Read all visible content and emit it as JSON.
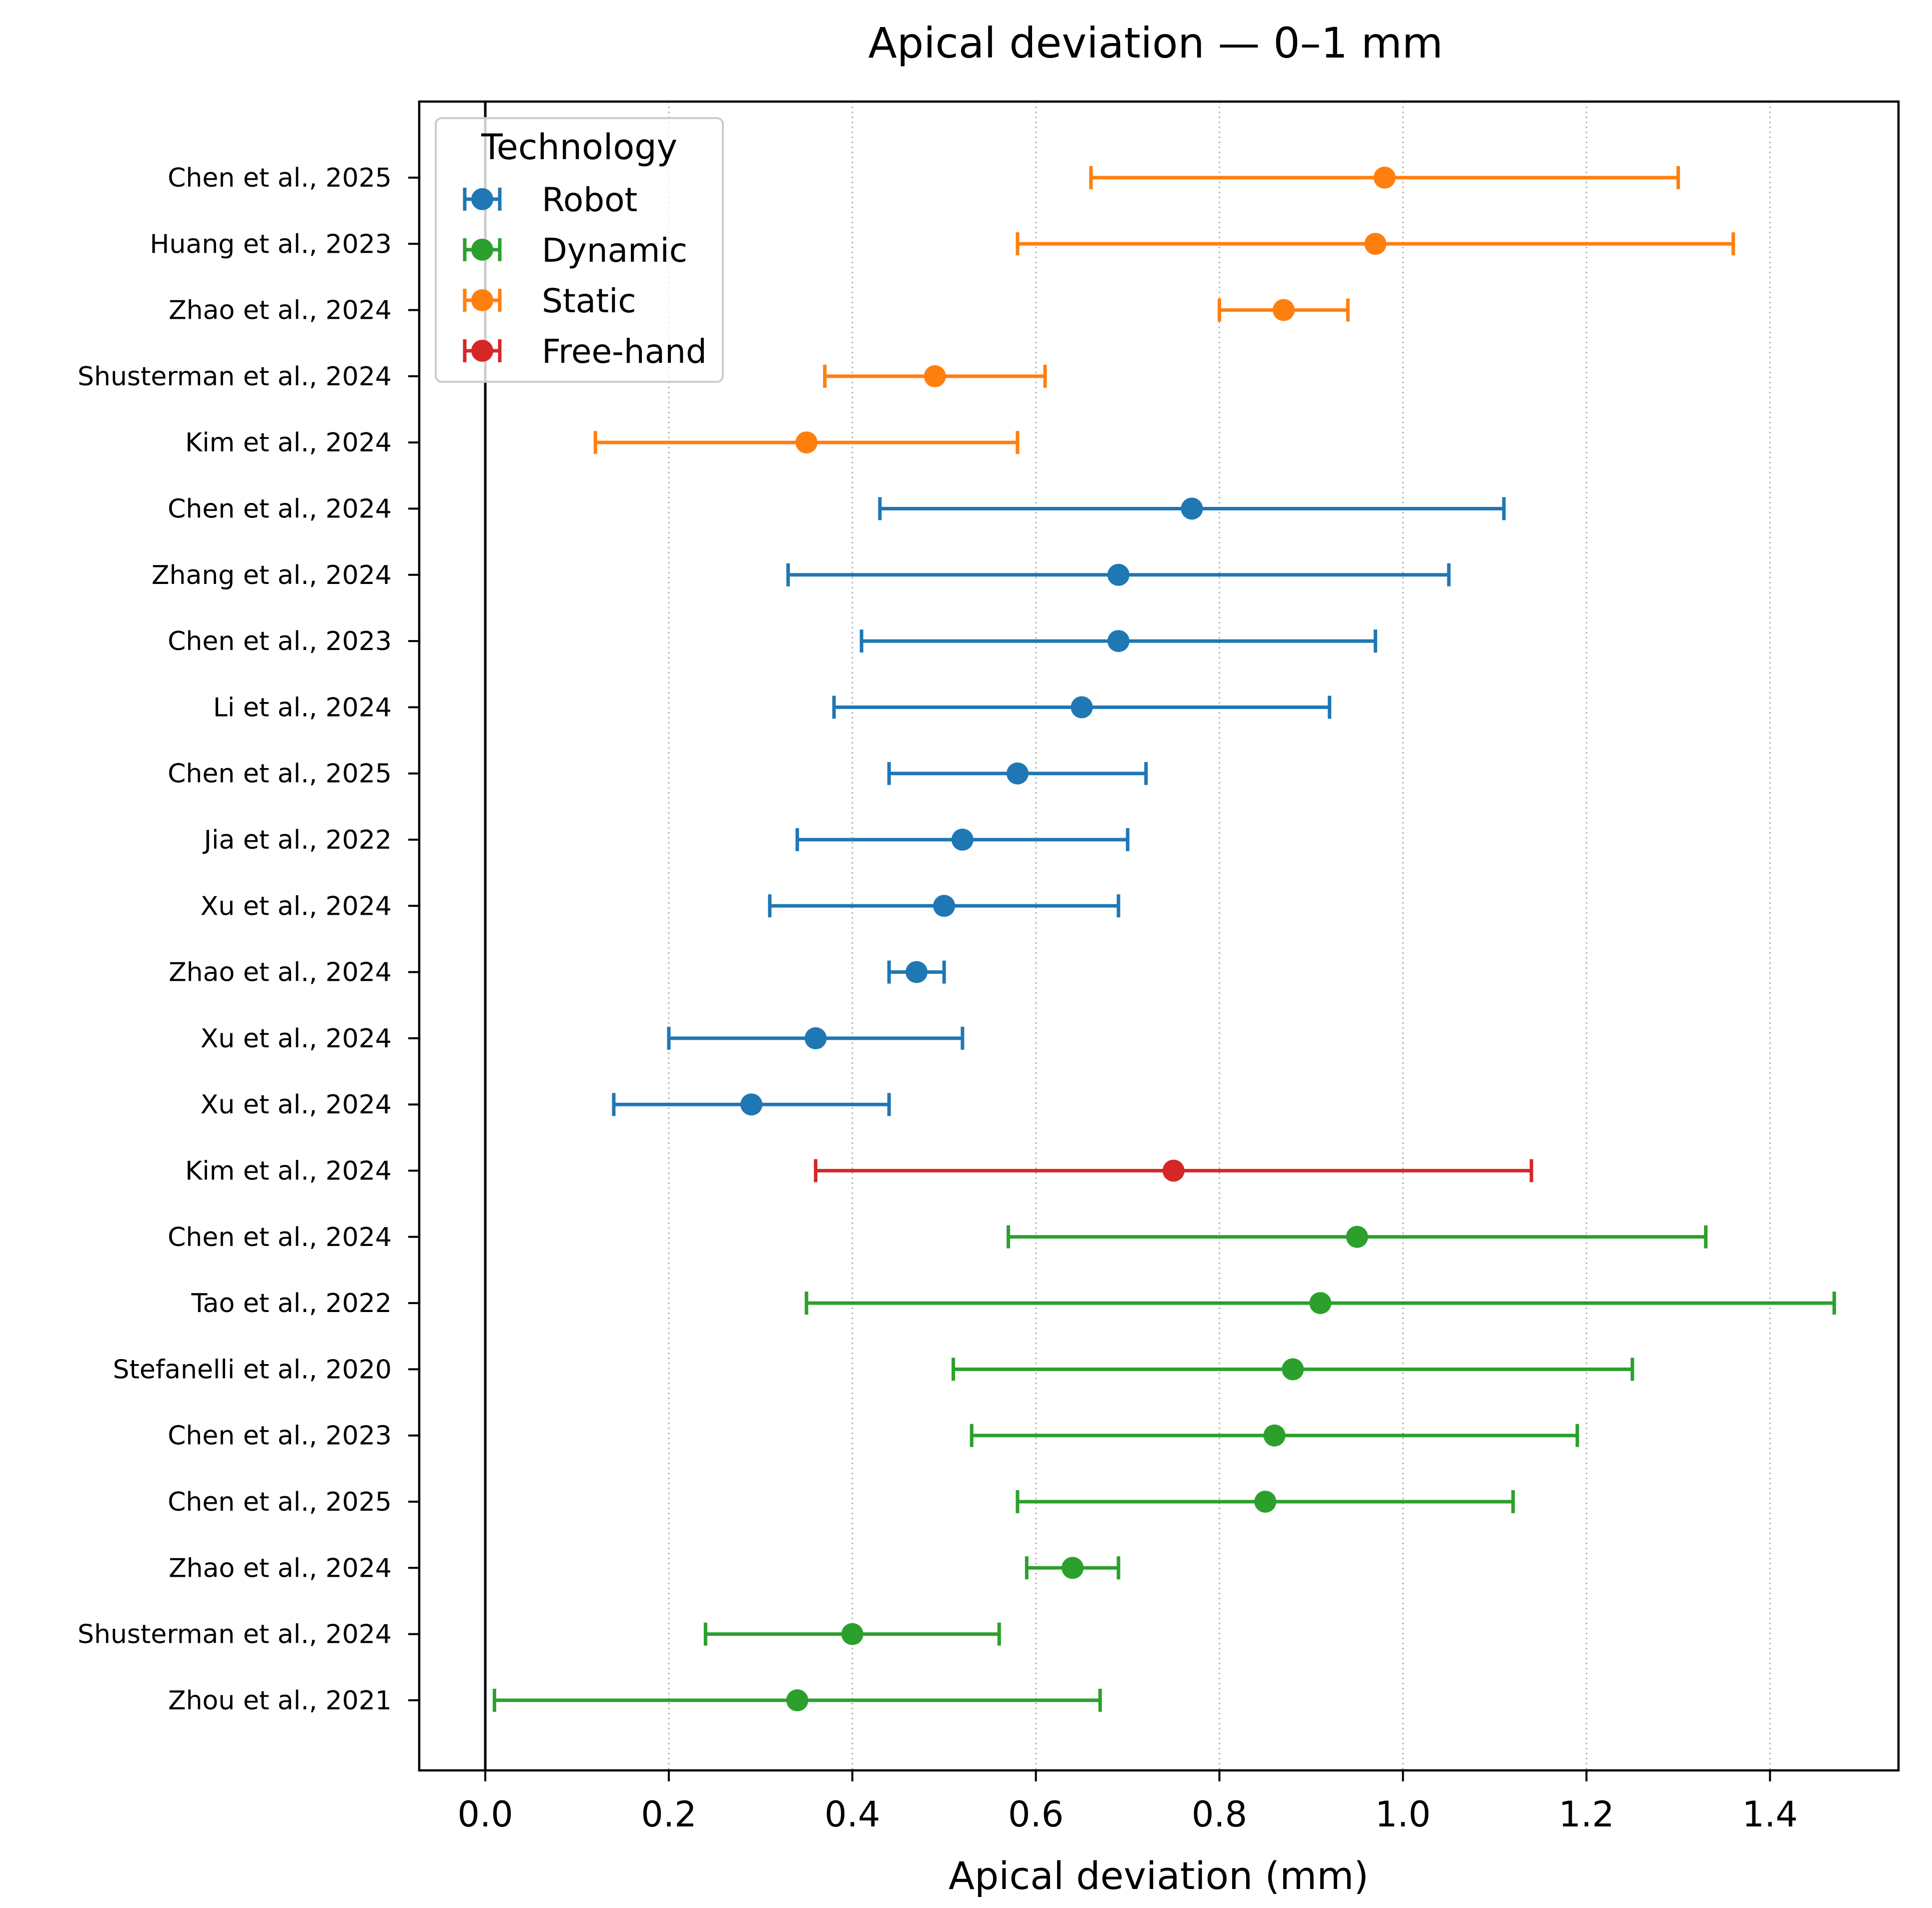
{
  "chart_data": {
    "type": "forest",
    "title": "Apical deviation — 0–1 mm",
    "xlabel": "Apical deviation (mm)",
    "ylabel": "",
    "xlim": [
      -0.072,
      1.54
    ],
    "xticks": [
      0.0,
      0.2,
      0.4,
      0.6,
      0.8,
      1.0,
      1.2,
      1.4
    ],
    "xtick_labels": [
      "0.0",
      "0.2",
      "0.4",
      "0.6",
      "0.8",
      "1.0",
      "1.2",
      "1.4"
    ],
    "grid": "x, dotted",
    "reference_line": 0.0,
    "legend": {
      "title": "Technology",
      "placement": "top-left",
      "entries": [
        {
          "name": "Robot",
          "color": "#1f77b4"
        },
        {
          "name": "Dynamic",
          "color": "#2ca02c"
        },
        {
          "name": "Static",
          "color": "#ff7f0e"
        },
        {
          "name": "Free-hand",
          "color": "#d62728"
        }
      ]
    },
    "studies": [
      {
        "label": "Chen et al., 2025",
        "technology": "Static",
        "mean": 0.98,
        "low": 0.66,
        "high": 1.3
      },
      {
        "label": "Huang et al., 2023",
        "technology": "Static",
        "mean": 0.97,
        "low": 0.58,
        "high": 1.36
      },
      {
        "label": "Zhao et al., 2024",
        "technology": "Static",
        "mean": 0.87,
        "low": 0.8,
        "high": 0.94
      },
      {
        "label": "Shusterman et al., 2024",
        "technology": "Static",
        "mean": 0.49,
        "low": 0.37,
        "high": 0.61
      },
      {
        "label": "Kim et al., 2024",
        "technology": "Static",
        "mean": 0.35,
        "low": 0.12,
        "high": 0.58
      },
      {
        "label": "Chen et al., 2024",
        "technology": "Robot",
        "mean": 0.77,
        "low": 0.43,
        "high": 1.11
      },
      {
        "label": "Zhang et al., 2024",
        "technology": "Robot",
        "mean": 0.69,
        "low": 0.33,
        "high": 1.05
      },
      {
        "label": "Chen et al., 2023",
        "technology": "Robot",
        "mean": 0.69,
        "low": 0.41,
        "high": 0.97
      },
      {
        "label": "Li et al., 2024",
        "technology": "Robot",
        "mean": 0.65,
        "low": 0.38,
        "high": 0.92
      },
      {
        "label": "Chen et al., 2025",
        "technology": "Robot",
        "mean": 0.58,
        "low": 0.44,
        "high": 0.72
      },
      {
        "label": "Jia et al., 2022",
        "technology": "Robot",
        "mean": 0.52,
        "low": 0.34,
        "high": 0.7
      },
      {
        "label": "Xu et al., 2024",
        "technology": "Robot",
        "mean": 0.5,
        "low": 0.31,
        "high": 0.69
      },
      {
        "label": "Zhao et al., 2024",
        "technology": "Robot",
        "mean": 0.47,
        "low": 0.44,
        "high": 0.5
      },
      {
        "label": "Xu et al., 2024",
        "technology": "Robot",
        "mean": 0.36,
        "low": 0.2,
        "high": 0.52
      },
      {
        "label": "Xu et al., 2024",
        "technology": "Robot",
        "mean": 0.29,
        "low": 0.14,
        "high": 0.44
      },
      {
        "label": "Kim et al., 2024",
        "technology": "Free-hand",
        "mean": 0.75,
        "low": 0.36,
        "high": 1.14
      },
      {
        "label": "Chen et al., 2024",
        "technology": "Dynamic",
        "mean": 0.95,
        "low": 0.57,
        "high": 1.33
      },
      {
        "label": "Tao et al., 2022",
        "technology": "Dynamic",
        "mean": 0.91,
        "low": 0.35,
        "high": 1.47
      },
      {
        "label": "Stefanelli et al., 2020",
        "technology": "Dynamic",
        "mean": 0.88,
        "low": 0.51,
        "high": 1.25
      },
      {
        "label": "Chen et al., 2023",
        "technology": "Dynamic",
        "mean": 0.86,
        "low": 0.53,
        "high": 1.19
      },
      {
        "label": "Chen et al., 2025",
        "technology": "Dynamic",
        "mean": 0.85,
        "low": 0.58,
        "high": 1.12
      },
      {
        "label": "Zhao et al., 2024",
        "technology": "Dynamic",
        "mean": 0.64,
        "low": 0.59,
        "high": 0.69
      },
      {
        "label": "Shusterman et al., 2024",
        "technology": "Dynamic",
        "mean": 0.4,
        "low": 0.24,
        "high": 0.56
      },
      {
        "label": "Zhou et al., 2021",
        "technology": "Dynamic",
        "mean": 0.34,
        "low": 0.01,
        "high": 0.67
      }
    ]
  }
}
